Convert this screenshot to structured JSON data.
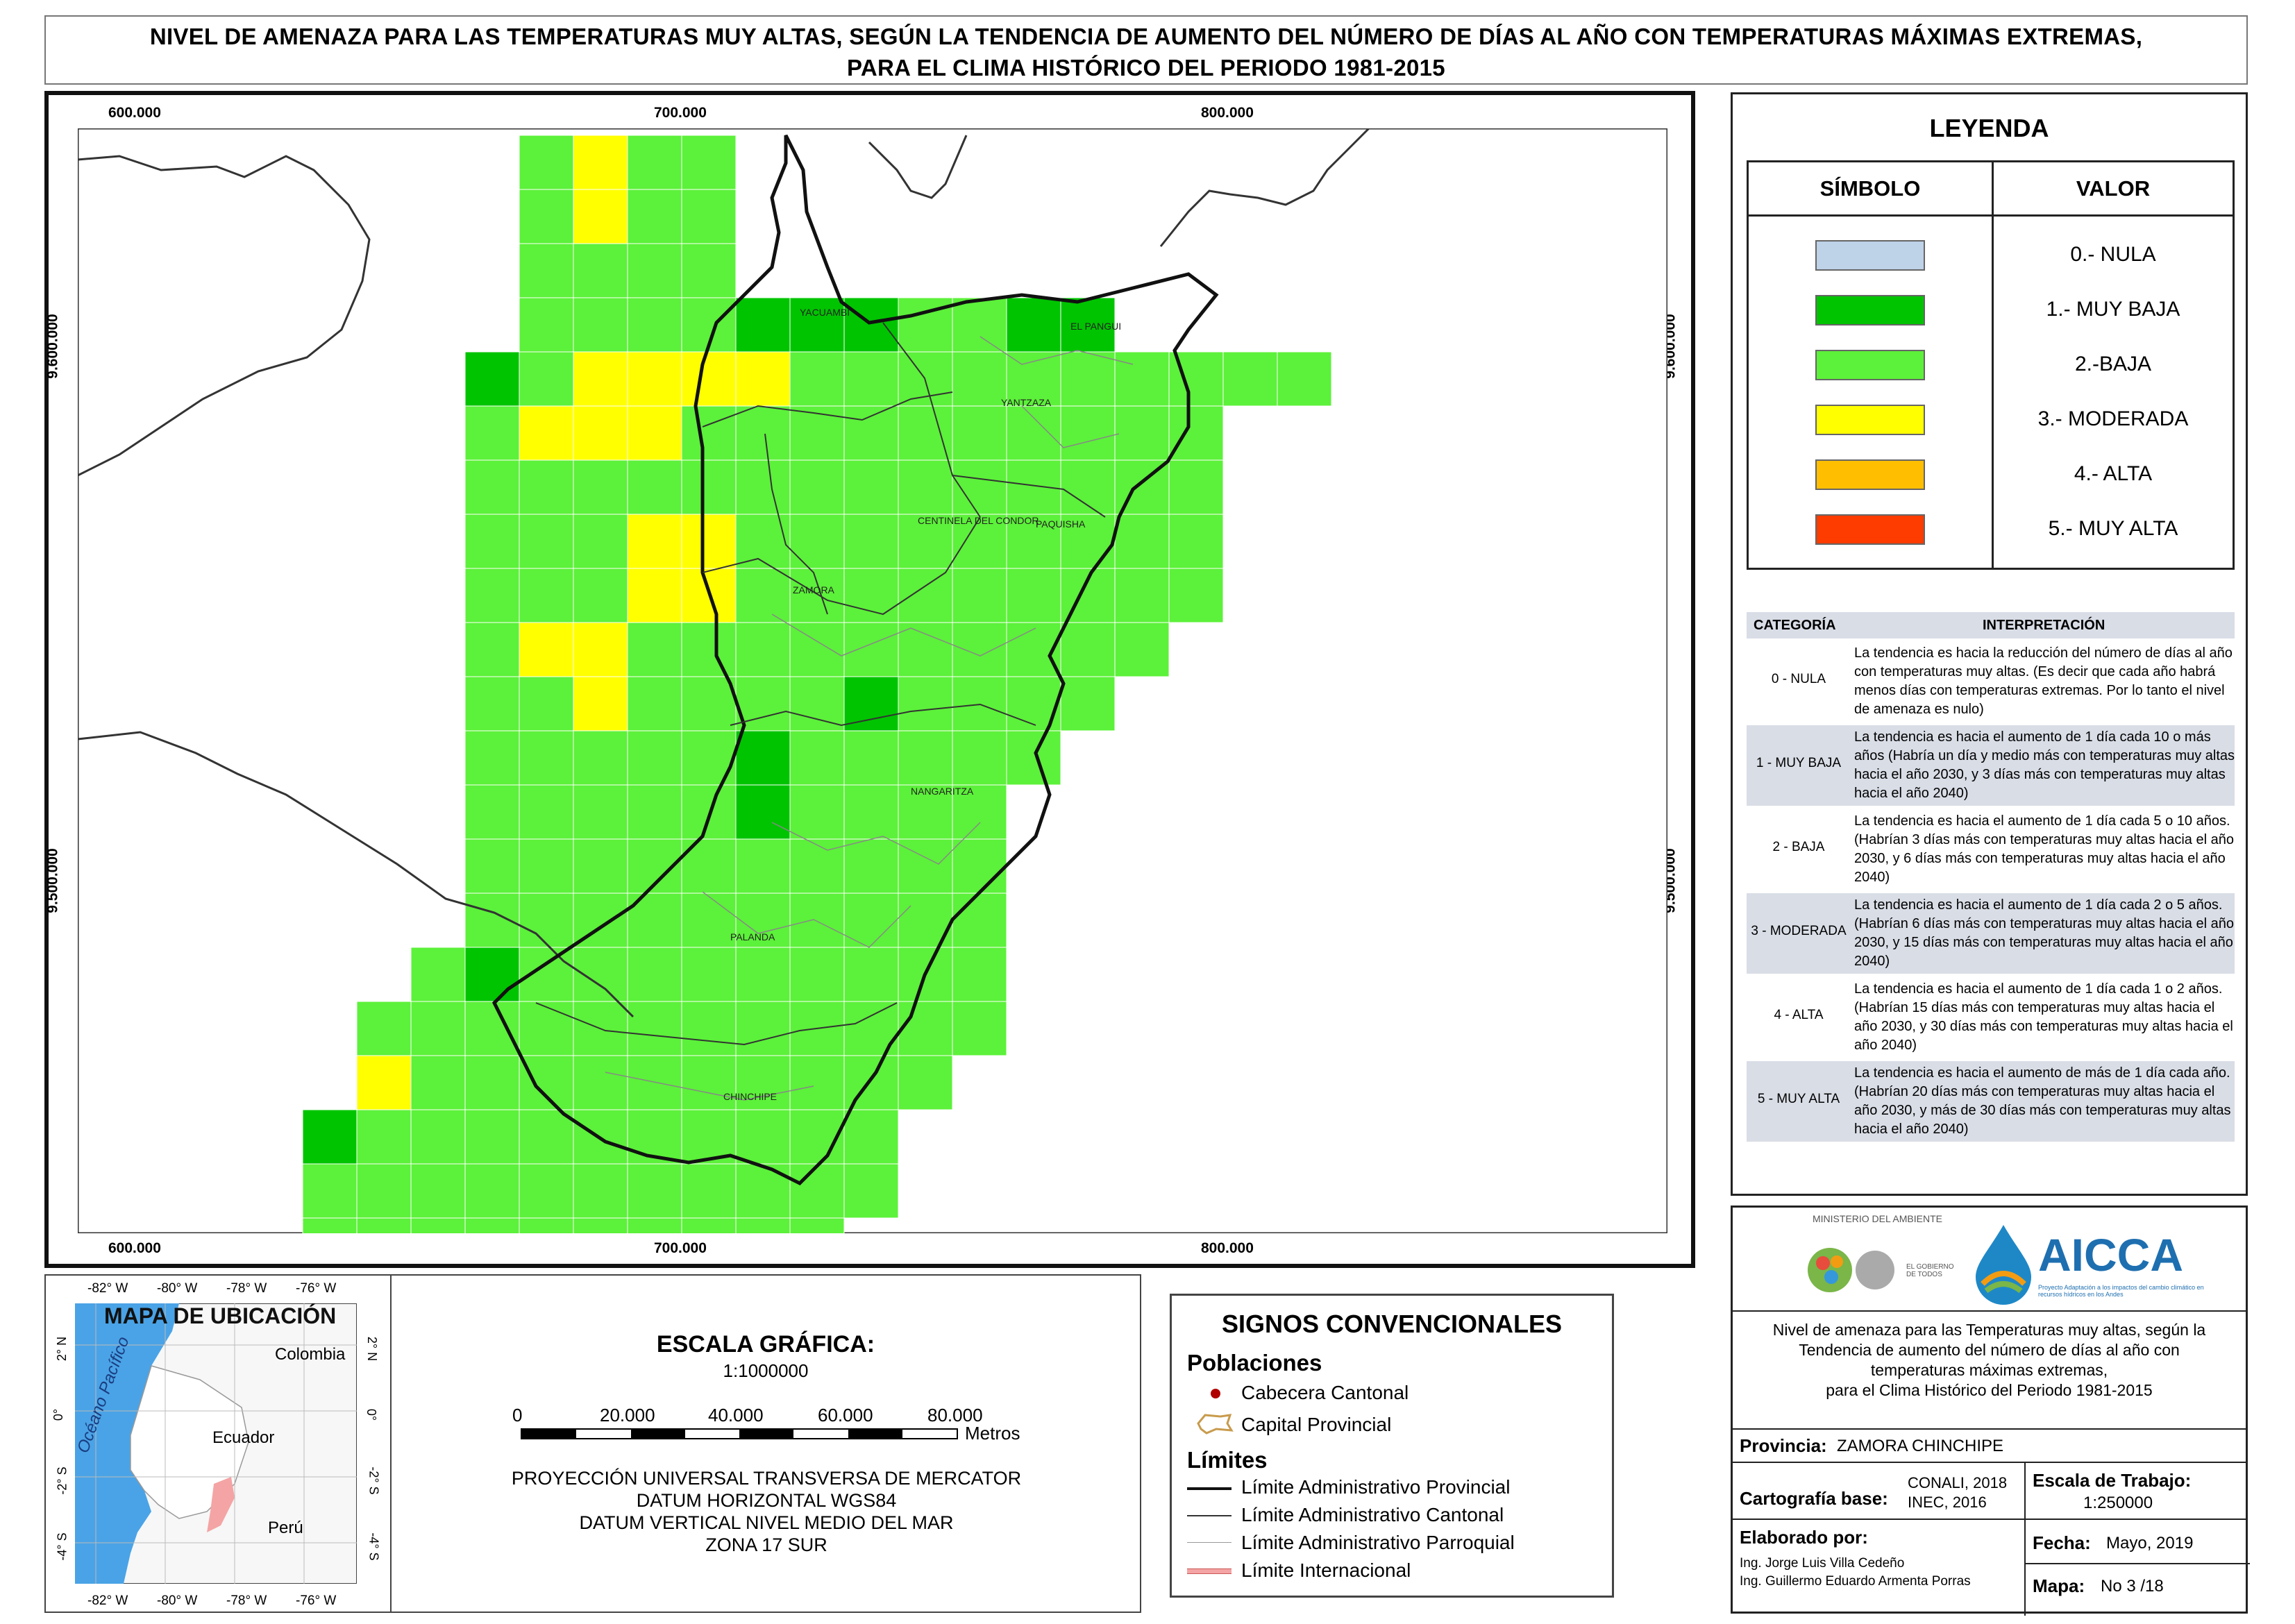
{
  "title": {
    "line1": "NIVEL DE AMENAZA PARA LAS TEMPERATURAS MUY ALTAS, SEGÚN LA TENDENCIA DE AUMENTO DEL NÚMERO DE DÍAS AL AÑO CON TEMPERATURAS MÁXIMAS EXTREMAS,",
    "line2": "PARA EL CLIMA HISTÓRICO DEL PERIODO 1981-2015"
  },
  "map": {
    "x_ticks": [
      "600.000",
      "700.000",
      "800.000"
    ],
    "y_ticks": [
      "9.600.000",
      "9.500.000"
    ],
    "cantons": [
      "YACUAMBI",
      "EL PANGUI",
      "YANTZAZA",
      "CENTINELA DEL CONDOR",
      "PAQUISHA",
      "ZAMORA",
      "NANGARITZA",
      "PALANDA",
      "CHINCHIPE"
    ],
    "colors": {
      "nula": "#bed2e8",
      "muy_baja": "#00c400",
      "baja": "#5cf13a",
      "moderada": "#ffff00",
      "alta": "#ffbf00",
      "muy_alta": "#ff3c00"
    }
  },
  "legend": {
    "title": "LEYENDA",
    "col_symbol": "SÍMBOLO",
    "col_value": "VALOR",
    "items": [
      {
        "label": "0.- NULA",
        "color": "#bed2e8"
      },
      {
        "label": "1.- MUY BAJA",
        "color": "#00c400"
      },
      {
        "label": "2.-BAJA",
        "color": "#5cf13a"
      },
      {
        "label": "3.- MODERADA",
        "color": "#ffff00"
      },
      {
        "label": "4.- ALTA",
        "color": "#ffbf00"
      },
      {
        "label": "5.- MUY ALTA",
        "color": "#ff3c00"
      }
    ]
  },
  "interpretation": {
    "col_category": "CATEGORÍA",
    "col_interp": "INTERPRETACIÓN",
    "rows": [
      {
        "cat": "0 - NULA",
        "text": "La tendencia es hacia la reducción del número de días al año con temperaturas muy altas. (Es decir que cada año habrá menos días con temperaturas extremas. Por lo tanto el nivel de amenaza es nulo)"
      },
      {
        "cat": "1 - MUY BAJA",
        "text": "La tendencia es hacia el aumento de 1 día cada 10 o más años (Habría un día y medio más con temperaturas muy altas hacia el año 2030, y 3 días más con temperaturas muy altas hacia el año 2040)"
      },
      {
        "cat": "2 - BAJA",
        "text": "La tendencia es hacia el aumento de 1 día cada 5 o 10 años. (Habrían 3 días más con temperaturas muy altas hacia el año 2030, y 6 días más con temperaturas muy altas hacia el año 2040)"
      },
      {
        "cat": "3 - MODERADA",
        "text": "La tendencia es hacia el aumento de 1 día cada 2 o 5 años. (Habrían 6 días más con temperaturas muy altas hacia el año 2030, y 15 días más con temperaturas muy altas hacia el año 2040)"
      },
      {
        "cat": "4 - ALTA",
        "text": "La tendencia es hacia el aumento de 1 día cada 1 o 2 años. (Habrían 15 días más con temperaturas muy altas hacia el año 2030, y 30 días más con temperaturas muy altas hacia el año 2040)"
      },
      {
        "cat": "5 - MUY ALTA",
        "text": "La tendencia es hacia el aumento de más de 1 día cada año. (Habrían 20 días más con temperaturas muy altas hacia el año 2030, y más de 30 días más con temperaturas muy altas hacia el año 2040)"
      }
    ]
  },
  "logos": {
    "ministerio": "MINISTERIO DEL AMBIENTE",
    "gobierno": "EL GOBIERNO DE TODOS",
    "aicca": "AICCA",
    "aicca_sub": "Proyecto Adaptación a los impactos del cambio climático en recursos hídricos en los Andes"
  },
  "map_desc": [
    "Nivel de amenaza para las Temperaturas muy altas, según la",
    "Tendencia de aumento del número de días al año con",
    "temperaturas máximas extremas,",
    "para el Clima Histórico del Periodo 1981-2015"
  ],
  "info": {
    "provincia_label": "Provincia:",
    "provincia_value": "ZAMORA CHINCHIPE",
    "cartografia_label": "Cartografía base:",
    "cartografia_value1": "CONALI, 2018",
    "cartografia_value2": "INEC, 2016",
    "escala_label": "Escala de Trabajo:",
    "escala_value": "1:250000",
    "elaborado_label": "Elaborado por:",
    "elaborado1": "Ing. Jorge Luis Villa Cedeño",
    "elaborado2": "Ing. Guillermo Eduardo Armenta Porras",
    "fecha_label": "Fecha:",
    "fecha_value": "Mayo, 2019",
    "mapa_label": "Mapa:",
    "mapa_value": "No 3 /18"
  },
  "location_map": {
    "title": "MAPA DE UBICACIÓN",
    "ocean": "Océano Pacífico",
    "countries": [
      "Colombia",
      "Ecuador",
      "Perú"
    ],
    "lon_ticks": [
      "-82° W",
      "-80° W",
      "-78° W",
      "-76° W"
    ],
    "lat_ticks": [
      "2° N",
      "0°",
      "-2° S",
      "-4° S"
    ]
  },
  "scale": {
    "title": "ESCALA GRÁFICA:",
    "ratio": "1:1000000",
    "ticks": [
      "0",
      "20.000",
      "40.000",
      "60.000",
      "80.000"
    ],
    "unit": "Metros",
    "proj1": "PROYECCIÓN UNIVERSAL TRANSVERSA DE MERCATOR",
    "proj2": "DATUM HORIZONTAL WGS84",
    "proj3": "DATUM VERTICAL NIVEL MEDIO DEL MAR",
    "proj4": "ZONA 17 SUR"
  },
  "signs": {
    "title": "SIGNOS CONVENCIONALES",
    "poblaciones": "Poblaciones",
    "cabecera": "Cabecera Cantonal",
    "capital": "Capital Provincial",
    "limites": "Límites",
    "lim_prov": "Límite Administrativo Provincial",
    "lim_cant": "Límite Administrativo Cantonal",
    "lim_parr": "Límite Administrativo Parroquial",
    "lim_int": "Límite Internacional"
  }
}
